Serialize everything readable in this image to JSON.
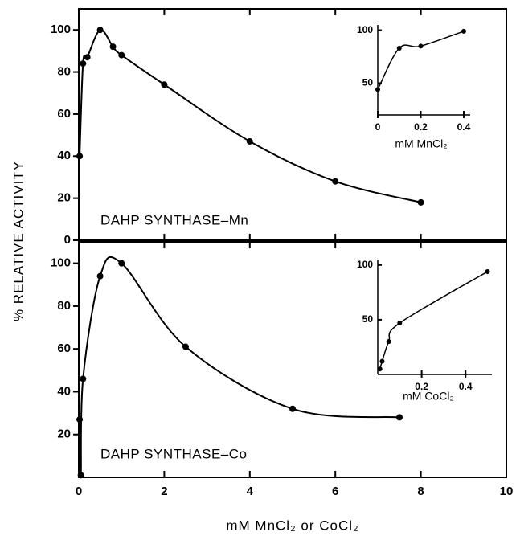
{
  "chart_data": [
    {
      "type": "line",
      "annotation": "DAHP SYNTHASE–Mn",
      "ylabel": "% RELATIVE ACTIVITY",
      "color": "#000000",
      "x": [
        0.02,
        0.1,
        0.2,
        0.5,
        0.8,
        1.0,
        2.0,
        4.0,
        6.0,
        8.0
      ],
      "values": [
        40,
        84,
        87,
        100,
        92,
        88,
        74,
        47,
        28,
        18
      ],
      "xlim": [
        0,
        10
      ],
      "ylim": [
        0,
        110
      ],
      "yticks": [
        0,
        20,
        40,
        60,
        80,
        100
      ]
    },
    {
      "type": "line",
      "annotation": "DAHP SYNTHASE–Co",
      "xlabel": "mM MnCl₂ or CoCl₂",
      "color": "#000000",
      "x": [
        0.02,
        0.05,
        0.1,
        0.5,
        1.0,
        2.5,
        5.0,
        7.5
      ],
      "values": [
        27,
        1,
        46,
        94,
        100,
        61,
        32,
        28
      ],
      "xlim": [
        0,
        10
      ],
      "ylim": [
        0,
        110
      ],
      "xticks": [
        0,
        2,
        4,
        6,
        8,
        10
      ],
      "yticks": [
        20,
        40,
        60,
        80,
        100
      ]
    },
    {
      "type": "line",
      "xlabel": "mM MnCl₂",
      "color": "#000000",
      "x": [
        0,
        0.1,
        0.2,
        0.4
      ],
      "values": [
        44,
        83,
        85,
        99
      ],
      "xlim": [
        0,
        0.43
      ],
      "ylim": [
        20,
        105
      ],
      "xticks": [
        0,
        0.2,
        0.4
      ],
      "yticks": [
        50,
        100
      ]
    },
    {
      "type": "line",
      "xlabel": "mM CoCl₂",
      "color": "#000000",
      "x": [
        0.01,
        0.02,
        0.05,
        0.1,
        0.5
      ],
      "values": [
        5,
        12,
        30,
        47,
        94
      ],
      "xlim": [
        0,
        0.52
      ],
      "ylim": [
        0,
        105
      ],
      "xticks": [
        0.2,
        0.4
      ],
      "yticks": [
        50,
        100
      ]
    }
  ]
}
